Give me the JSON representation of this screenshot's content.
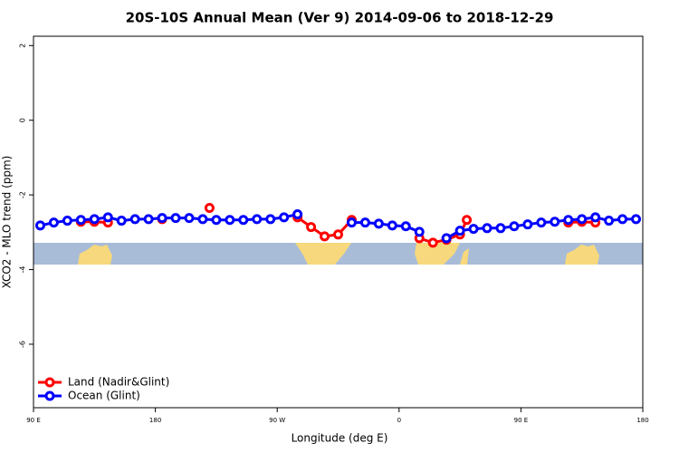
{
  "chart_data": {
    "type": "line",
    "title": "20S-10S Annual Mean (Ver 9)   2014-09-06 to 2018-12-29",
    "x_label": "Longitude (deg E)",
    "y_label": "XCO2 - MLO trend (ppm)",
    "xlim": [
      90,
      540
    ],
    "ylim": [
      -7.7,
      2.25
    ],
    "xticks": [
      {
        "value": 90,
        "label": "90 E"
      },
      180,
      {
        "value": 270,
        "label": "90 W"
      },
      {
        "value": 360,
        "label": "0"
      },
      {
        "value": 450,
        "label": "90 E"
      },
      {
        "value": 540,
        "label": "180"
      }
    ],
    "yticks": [
      2,
      0,
      -2,
      -4,
      -6
    ],
    "legend": "bottom-left",
    "series": [
      {
        "name": "Land (Nadir&Glint)",
        "color": "#ff0000",
        "x": [
          125,
          135,
          145,
          165,
          185,
          200,
          220,
          250,
          285,
          295,
          305,
          315,
          325,
          350,
          375,
          385,
          395,
          405,
          410,
          450,
          485,
          495,
          505
        ],
        "values": [
          -2.72,
          -2.72,
          -2.74,
          null,
          -2.65,
          null,
          -2.35,
          null,
          -2.6,
          -2.86,
          -3.11,
          -3.06,
          -2.67,
          null,
          -3.16,
          -3.28,
          -3.2,
          -3.06,
          -2.67,
          null,
          -2.74,
          -2.72,
          -2.74
        ]
      },
      {
        "name": "Ocean (Glint)",
        "color": "#0000ff",
        "x": [
          95,
          105,
          115,
          125,
          135,
          145,
          155,
          165,
          175,
          185,
          195,
          205,
          215,
          225,
          235,
          245,
          255,
          265,
          275,
          285,
          295,
          305,
          315,
          325,
          335,
          345,
          355,
          365,
          375,
          385,
          395,
          405,
          415,
          425,
          435,
          445,
          455,
          465,
          475,
          485,
          495,
          505,
          515,
          525,
          535
        ],
        "values": [
          -2.82,
          -2.74,
          -2.69,
          -2.67,
          -2.65,
          -2.6,
          -2.69,
          -2.65,
          -2.65,
          -2.62,
          -2.62,
          -2.62,
          -2.65,
          -2.67,
          -2.67,
          -2.67,
          -2.65,
          -2.65,
          -2.6,
          -2.52,
          null,
          null,
          null,
          -2.74,
          -2.74,
          -2.77,
          -2.82,
          -2.84,
          -2.99,
          null,
          -3.16,
          -2.96,
          -2.91,
          -2.89,
          -2.89,
          -2.84,
          -2.79,
          -2.74,
          -2.72,
          -2.67,
          -2.65,
          -2.6,
          -2.69,
          -2.65,
          -2.65
        ]
      }
    ]
  }
}
